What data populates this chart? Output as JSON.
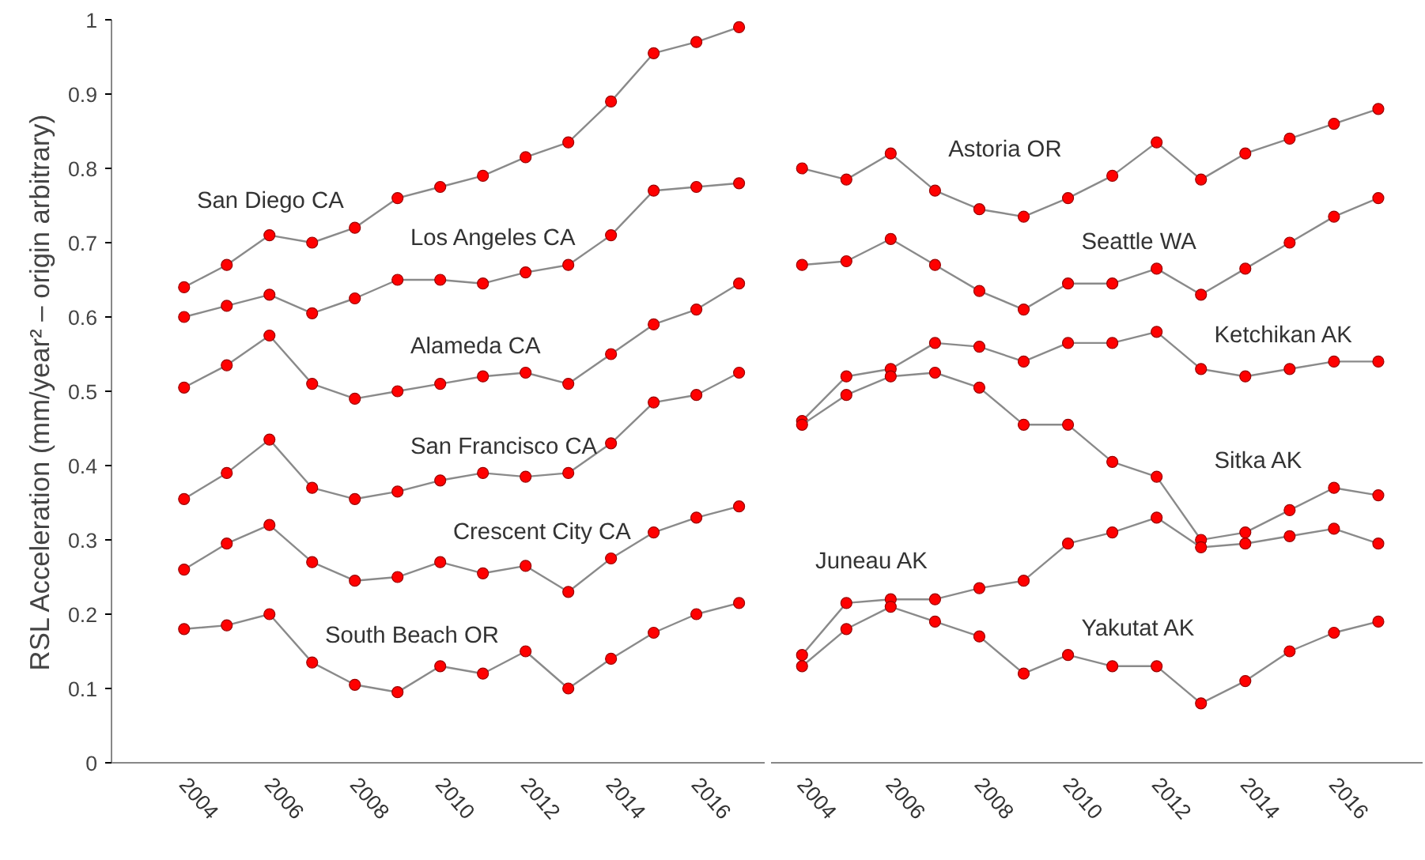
{
  "chart_data": [
    {
      "type": "line",
      "ylabel": "RSL Acceleration (mm/year² – origin arbitrary)",
      "x": [
        2004,
        2005,
        2006,
        2007,
        2008,
        2009,
        2010,
        2011,
        2012,
        2013,
        2014,
        2015,
        2016,
        2017
      ],
      "xlim": [
        2002.3,
        2017.6
      ],
      "xticks": [
        2004,
        2006,
        2008,
        2010,
        2012,
        2014,
        2016
      ],
      "ylim": [
        0,
        1
      ],
      "yticks": [
        0,
        0.1,
        0.2,
        0.3,
        0.4,
        0.5,
        0.6,
        0.7,
        0.8,
        0.9,
        1
      ],
      "marker": "circle",
      "line_style": "solid",
      "grid": false,
      "legend": false,
      "series": [
        {
          "name": "San Diego CA",
          "color": "#ff0000",
          "values": [
            0.64,
            0.67,
            0.71,
            0.7,
            0.72,
            0.76,
            0.775,
            0.79,
            0.815,
            0.835,
            0.89,
            0.955,
            0.97,
            0.99
          ]
        },
        {
          "name": "Los Angeles CA",
          "color": "#ff0000",
          "values": [
            0.6,
            0.615,
            0.63,
            0.605,
            0.625,
            0.65,
            0.65,
            0.645,
            0.66,
            0.67,
            0.71,
            0.77,
            0.775,
            0.78
          ]
        },
        {
          "name": "Alameda CA",
          "color": "#ff0000",
          "values": [
            0.505,
            0.535,
            0.575,
            0.51,
            0.49,
            0.5,
            0.51,
            0.52,
            0.525,
            0.51,
            0.55,
            0.59,
            0.61,
            0.645
          ]
        },
        {
          "name": "San Francisco CA",
          "color": "#ff0000",
          "values": [
            0.355,
            0.39,
            0.435,
            0.37,
            0.355,
            0.365,
            0.38,
            0.39,
            0.385,
            0.39,
            0.43,
            0.485,
            0.495,
            0.525
          ]
        },
        {
          "name": "Crescent City CA",
          "color": "#ff0000",
          "values": [
            0.26,
            0.295,
            0.32,
            0.27,
            0.245,
            0.25,
            0.27,
            0.255,
            0.265,
            0.23,
            0.275,
            0.31,
            0.33,
            0.345
          ]
        },
        {
          "name": "South Beach OR",
          "color": "#ff0000",
          "values": [
            0.18,
            0.185,
            0.2,
            0.135,
            0.105,
            0.095,
            0.13,
            0.12,
            0.15,
            0.1,
            0.14,
            0.175,
            0.2,
            0.215
          ]
        }
      ]
    },
    {
      "type": "line",
      "x": [
        2004,
        2005,
        2006,
        2007,
        2008,
        2009,
        2010,
        2011,
        2012,
        2013,
        2014,
        2015,
        2016,
        2017
      ],
      "xlim": [
        2003.3,
        2018.0
      ],
      "xticks": [
        2004,
        2006,
        2008,
        2010,
        2012,
        2014,
        2016
      ],
      "ylim": [
        0,
        1
      ],
      "tick_labels": "x",
      "marker": "circle",
      "line_style": "solid",
      "grid": false,
      "legend": false,
      "series": [
        {
          "name": "Astoria OR",
          "color": "#ff0000",
          "values": [
            0.8,
            0.785,
            0.82,
            0.77,
            0.745,
            0.735,
            0.76,
            0.79,
            0.835,
            0.785,
            0.82,
            0.84,
            0.86,
            0.88
          ]
        },
        {
          "name": "Seattle WA",
          "color": "#ff0000",
          "values": [
            0.67,
            0.675,
            0.705,
            0.67,
            0.635,
            0.61,
            0.645,
            0.645,
            0.665,
            0.63,
            0.665,
            0.7,
            0.735,
            0.76
          ]
        },
        {
          "name": "Ketchikan AK",
          "color": "#ff0000",
          "values": [
            0.46,
            0.52,
            0.53,
            0.565,
            0.56,
            0.54,
            0.565,
            0.565,
            0.58,
            0.53,
            0.52,
            0.53,
            0.54,
            0.54
          ]
        },
        {
          "name": "Sitka AK",
          "color": "#ff0000",
          "values": [
            0.455,
            0.495,
            0.52,
            0.525,
            0.505,
            0.455,
            0.455,
            0.405,
            0.385,
            0.3,
            0.31,
            0.34,
            0.37,
            0.36
          ]
        },
        {
          "name": "Juneau AK",
          "color": "#ff0000",
          "values": [
            0.145,
            0.215,
            0.22,
            0.22,
            0.235,
            0.245,
            0.295,
            0.31,
            0.33,
            0.29,
            0.295,
            0.305,
            0.315,
            0.295
          ]
        },
        {
          "name": "Yakutat AK",
          "color": "#ff0000",
          "values": [
            0.13,
            0.18,
            0.21,
            0.19,
            0.17,
            0.12,
            0.145,
            0.13,
            0.13,
            0.08,
            0.11,
            0.15,
            0.175,
            0.19
          ]
        }
      ]
    }
  ]
}
